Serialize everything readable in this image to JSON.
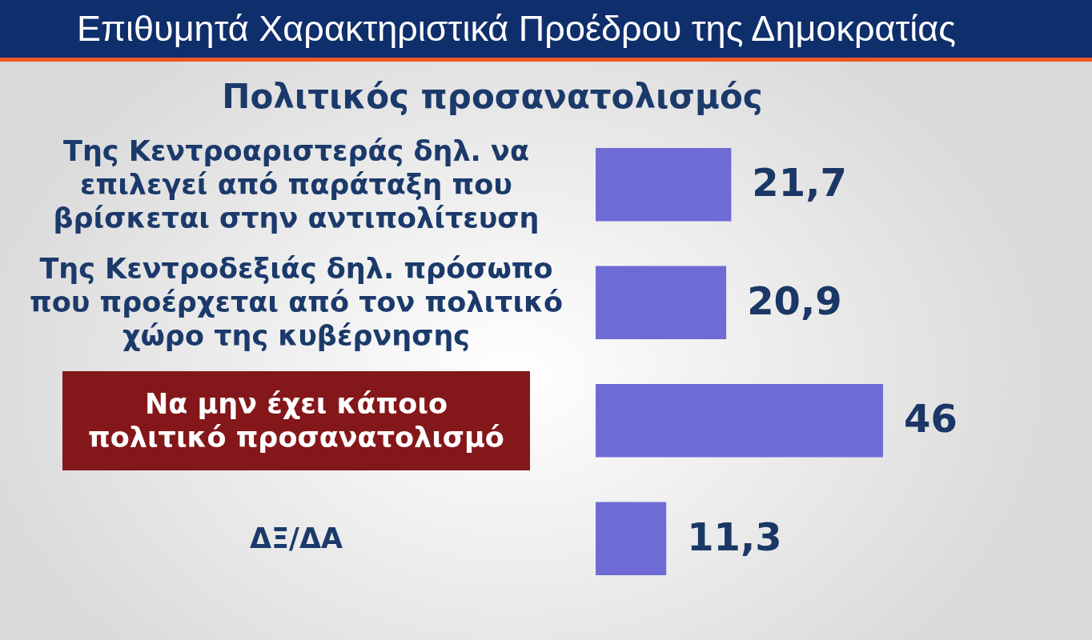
{
  "chart_data": {
    "type": "bar",
    "orientation": "horizontal",
    "title": "Επιθυμητά Χαρακτηριστικά Προέδρου της Δημοκρατίας",
    "subtitle": "Πολιτικός προσανατολισμός",
    "categories": [
      "Της Κεντροαριστεράς δηλ. να επιλεγεί από παράταξη που βρίσκεται στην αντιπολίτευση",
      "Της Κεντροδεξιάς δηλ. πρόσωπο που προέρχεται από τον πολιτικό χώρο της κυβέρνησης",
      "Να μην έχει κάποιο πολιτικό προσανατολισμό",
      "ΔΞ/ΔΑ"
    ],
    "values": [
      21.7,
      20.9,
      46,
      11.3
    ],
    "color": "#6e6bd5",
    "value_labels": [
      "21,7",
      "20,9",
      "46",
      "11,3"
    ]
  }
}
